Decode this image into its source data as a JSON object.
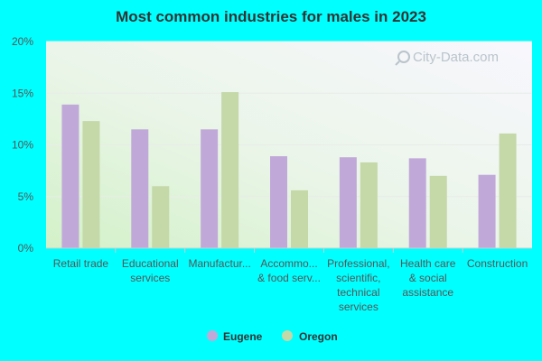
{
  "chart_data": {
    "type": "bar",
    "title": "Most common industries for males in 2023",
    "xlabel": "",
    "ylabel": "",
    "ylim": [
      0,
      20
    ],
    "yticks": [
      0,
      5,
      10,
      15,
      20
    ],
    "ytick_labels": [
      "0%",
      "5%",
      "10%",
      "15%",
      "20%"
    ],
    "categories": [
      [
        "Retail trade"
      ],
      [
        "Educational",
        "services"
      ],
      [
        "Manufactur..."
      ],
      [
        "Accommo...",
        "& food serv..."
      ],
      [
        "Professional,",
        "scientific,",
        "technical",
        "services"
      ],
      [
        "Health care",
        "& social",
        "assistance"
      ],
      [
        "Construction"
      ]
    ],
    "series": [
      {
        "name": "Eugene",
        "color": "#c0a9d9",
        "values": [
          13.9,
          11.5,
          11.5,
          8.9,
          8.8,
          8.7,
          7.1
        ]
      },
      {
        "name": "Oregon",
        "color": "#c4d8a8",
        "values": [
          12.3,
          6.0,
          15.1,
          5.6,
          8.3,
          7.0,
          11.1
        ]
      }
    ],
    "legend_position": "bottom",
    "grid": true,
    "watermark": "City-Data.com"
  },
  "colors": {
    "page_background": "#00ffff",
    "plot_background_top": "#f6f6fd",
    "plot_background_bottom": "#d4f2cc",
    "axis_line": "#cccccc"
  }
}
